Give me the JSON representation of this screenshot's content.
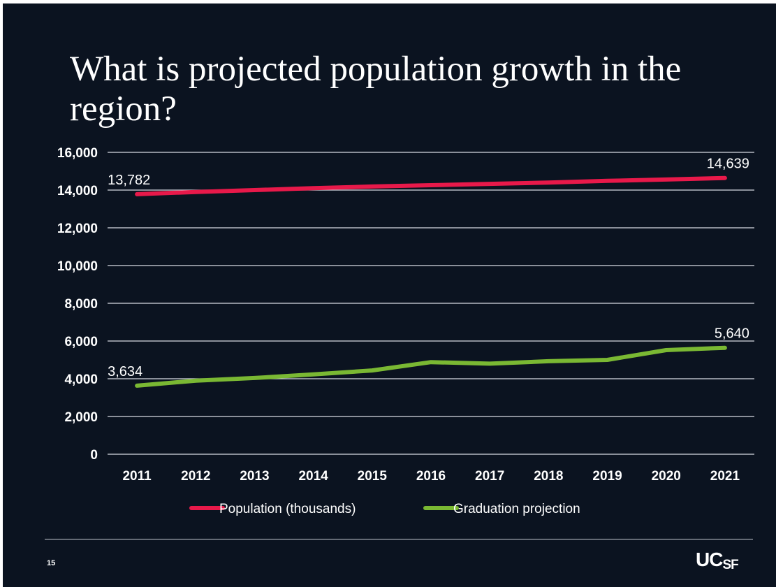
{
  "slide": {
    "title": "What is projected population growth in the region?",
    "page_number": "15",
    "logo_parts": [
      "UC",
      "SF"
    ]
  },
  "colors": {
    "background": "#0b1320",
    "gridline": "#d8dce2",
    "population_series": "#e8194a",
    "graduation_series": "#7ab833",
    "text": "#ffffff"
  },
  "chart_data": {
    "type": "line",
    "title": "",
    "xlabel": "",
    "ylabel": "",
    "ylim": [
      0,
      16000
    ],
    "y_ticks": [
      "16,000",
      "14,000",
      "12,000",
      "10,000",
      "8,000",
      "6,000",
      "4,000",
      "2,000",
      "0"
    ],
    "y_tick_values": [
      16000,
      14000,
      12000,
      10000,
      8000,
      6000,
      4000,
      2000,
      0
    ],
    "categories": [
      "2011",
      "2012",
      "2013",
      "2014",
      "2015",
      "2016",
      "2017",
      "2018",
      "2019",
      "2020",
      "2021"
    ],
    "grid": true,
    "legend_position": "bottom",
    "series": [
      {
        "name": "Population (thousands)",
        "color": "#e8194a",
        "values": [
          13782,
          13900,
          14000,
          14100,
          14190,
          14260,
          14330,
          14400,
          14490,
          14560,
          14639
        ]
      },
      {
        "name": "Graduation projection",
        "color": "#7ab833",
        "values": [
          3634,
          3900,
          4040,
          4230,
          4440,
          4880,
          4800,
          4930,
          5000,
          5520,
          5640
        ]
      }
    ],
    "data_labels": [
      {
        "series": 0,
        "index": 0,
        "text": "13,782"
      },
      {
        "series": 0,
        "index": 10,
        "text": "14,639"
      },
      {
        "series": 1,
        "index": 0,
        "text": "3,634"
      },
      {
        "series": 1,
        "index": 10,
        "text": "5,640"
      }
    ]
  }
}
